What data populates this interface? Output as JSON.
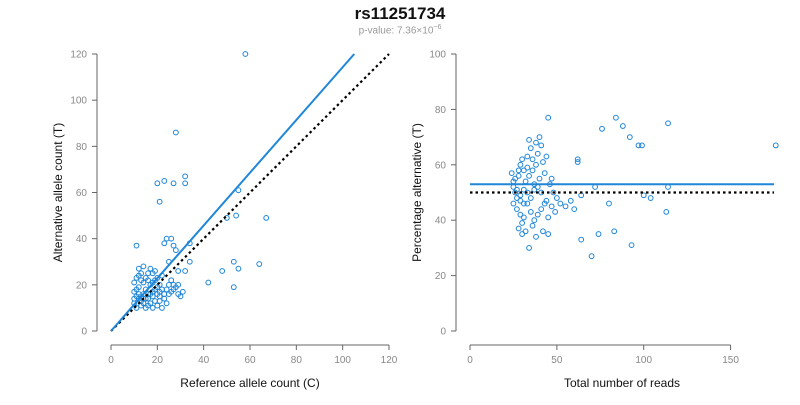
{
  "header": {
    "title": "rs11251734",
    "pvalue_prefix": "p-value: 7.36×10",
    "pvalue_exponent": "−6"
  },
  "colors": {
    "points": "#1f86d8",
    "fit_line": "#1f86d8",
    "reference_line": "#000000",
    "axis": "#666666",
    "tick_text": "#888888"
  },
  "chart_data": [
    {
      "type": "scatter",
      "xlabel": "Reference allele count (C)",
      "ylabel": "Alternative allele count (T)",
      "xlim": [
        0,
        120
      ],
      "ylim": [
        0,
        120
      ],
      "xticks": [
        0,
        20,
        40,
        60,
        80,
        100,
        120
      ],
      "yticks": [
        0,
        20,
        40,
        60,
        80,
        100,
        120
      ],
      "grid": false,
      "fit_line": {
        "style": "solid",
        "from": [
          0,
          0
        ],
        "to": [
          105,
          120
        ]
      },
      "reference_line": {
        "style": "dotted",
        "from": [
          0,
          0
        ],
        "to": [
          120,
          120
        ]
      },
      "points": [
        [
          58,
          120
        ],
        [
          28,
          86
        ],
        [
          32,
          67
        ],
        [
          20,
          64
        ],
        [
          23,
          65
        ],
        [
          27,
          64
        ],
        [
          32,
          64
        ],
        [
          21,
          56
        ],
        [
          55,
          61
        ],
        [
          54,
          50
        ],
        [
          67,
          49
        ],
        [
          50,
          49
        ],
        [
          26,
          40
        ],
        [
          23,
          38
        ],
        [
          24,
          40
        ],
        [
          34,
          38
        ],
        [
          28,
          35
        ],
        [
          27,
          37
        ],
        [
          11,
          37
        ],
        [
          25,
          30
        ],
        [
          29,
          26
        ],
        [
          32,
          26
        ],
        [
          48,
          26
        ],
        [
          55,
          27
        ],
        [
          34,
          30
        ],
        [
          53,
          30
        ],
        [
          64,
          29
        ],
        [
          42,
          21
        ],
        [
          53,
          19
        ],
        [
          27,
          20
        ],
        [
          29,
          16
        ],
        [
          31,
          17
        ],
        [
          10,
          17
        ],
        [
          11,
          18
        ],
        [
          12,
          19
        ],
        [
          13,
          15
        ],
        [
          14,
          16
        ],
        [
          15,
          18
        ],
        [
          16,
          14
        ],
        [
          17,
          20
        ],
        [
          18,
          17
        ],
        [
          19,
          22
        ],
        [
          21,
          13
        ],
        [
          22,
          18
        ],
        [
          10,
          12
        ],
        [
          11,
          10
        ],
        [
          12,
          14
        ],
        [
          13,
          11
        ],
        [
          14,
          12
        ],
        [
          15,
          10
        ],
        [
          16,
          11
        ],
        [
          17,
          12
        ],
        [
          18,
          10
        ],
        [
          19,
          13
        ],
        [
          20,
          11
        ],
        [
          21,
          15
        ],
        [
          22,
          10
        ],
        [
          24,
          12
        ],
        [
          12,
          24
        ],
        [
          13,
          22
        ],
        [
          14,
          28
        ],
        [
          15,
          23
        ],
        [
          16,
          25
        ],
        [
          17,
          27
        ],
        [
          18,
          21
        ],
        [
          19,
          26
        ],
        [
          20,
          23
        ],
        [
          21,
          20
        ],
        [
          10,
          21
        ],
        [
          11,
          23
        ],
        [
          12,
          27
        ],
        [
          13,
          25
        ],
        [
          14,
          21
        ],
        [
          16,
          22
        ],
        [
          18,
          25
        ],
        [
          20,
          19
        ],
        [
          22,
          24
        ],
        [
          23,
          16
        ],
        [
          24,
          18
        ],
        [
          25,
          20
        ],
        [
          26,
          17
        ],
        [
          28,
          19
        ],
        [
          30,
          15
        ],
        [
          14,
          14
        ],
        [
          16,
          16
        ],
        [
          18,
          15
        ],
        [
          20,
          16
        ],
        [
          11,
          15
        ],
        [
          13,
          13
        ],
        [
          15,
          14
        ],
        [
          17,
          16
        ],
        [
          19,
          18
        ],
        [
          21,
          17
        ],
        [
          23,
          14
        ],
        [
          25,
          16
        ],
        [
          10,
          14
        ],
        [
          12,
          16
        ],
        [
          26,
          22
        ],
        [
          27,
          18
        ],
        [
          29,
          20
        ]
      ]
    },
    {
      "type": "scatter",
      "xlabel": "Total number of reads",
      "ylabel": "Percentage alternative (T)",
      "xlim": [
        0,
        175
      ],
      "ylim": [
        0,
        100
      ],
      "xticks": [
        0,
        50,
        100,
        150
      ],
      "yticks": [
        0,
        20,
        40,
        60,
        80,
        100
      ],
      "grid": false,
      "fit_line": {
        "style": "solid",
        "from": [
          0,
          53
        ],
        "to": [
          175,
          53
        ]
      },
      "reference_line": {
        "style": "dotted",
        "from": [
          0,
          50
        ],
        "to": [
          175,
          50
        ]
      },
      "points": [
        [
          45,
          77
        ],
        [
          84,
          77
        ],
        [
          76,
          73
        ],
        [
          88,
          74
        ],
        [
          92,
          70
        ],
        [
          99,
          67
        ],
        [
          97,
          67
        ],
        [
          114,
          75
        ],
        [
          176,
          67
        ],
        [
          62,
          62
        ],
        [
          62,
          61
        ],
        [
          40,
          70
        ],
        [
          38,
          68
        ],
        [
          41,
          67
        ],
        [
          34,
          69
        ],
        [
          35,
          66
        ],
        [
          30,
          62
        ],
        [
          29,
          60
        ],
        [
          31,
          58
        ],
        [
          33,
          63
        ],
        [
          36,
          58
        ],
        [
          38,
          60
        ],
        [
          42,
          61
        ],
        [
          44,
          63
        ],
        [
          24,
          57
        ],
        [
          26,
          55
        ],
        [
          28,
          56
        ],
        [
          32,
          54
        ],
        [
          34,
          56
        ],
        [
          37,
          53
        ],
        [
          40,
          55
        ],
        [
          43,
          57
        ],
        [
          46,
          53
        ],
        [
          48,
          50
        ],
        [
          25,
          52
        ],
        [
          27,
          51
        ],
        [
          29,
          49
        ],
        [
          31,
          51
        ],
        [
          33,
          50
        ],
        [
          35,
          48
        ],
        [
          37,
          51
        ],
        [
          39,
          52
        ],
        [
          41,
          50
        ],
        [
          44,
          47
        ],
        [
          47,
          45
        ],
        [
          50,
          48
        ],
        [
          52,
          46
        ],
        [
          55,
          45
        ],
        [
          58,
          47
        ],
        [
          60,
          44
        ],
        [
          64,
          49
        ],
        [
          72,
          52
        ],
        [
          80,
          46
        ],
        [
          100,
          49
        ],
        [
          104,
          48
        ],
        [
          114,
          52
        ],
        [
          25,
          46
        ],
        [
          27,
          44
        ],
        [
          29,
          42
        ],
        [
          31,
          41
        ],
        [
          33,
          46
        ],
        [
          35,
          43
        ],
        [
          37,
          40
        ],
        [
          39,
          42
        ],
        [
          41,
          44
        ],
        [
          43,
          46
        ],
        [
          45,
          41
        ],
        [
          28,
          37
        ],
        [
          30,
          39
        ],
        [
          32,
          36
        ],
        [
          36,
          38
        ],
        [
          38,
          34
        ],
        [
          42,
          36
        ],
        [
          45,
          35
        ],
        [
          30,
          35
        ],
        [
          34,
          30
        ],
        [
          64,
          33
        ],
        [
          74,
          35
        ],
        [
          83,
          36
        ],
        [
          93,
          31
        ],
        [
          113,
          43
        ],
        [
          70,
          27
        ],
        [
          27,
          48
        ],
        [
          29,
          47
        ],
        [
          31,
          46
        ],
        [
          26,
          50
        ],
        [
          28,
          58
        ],
        [
          33,
          59
        ],
        [
          36,
          62
        ],
        [
          39,
          64
        ],
        [
          25,
          54
        ],
        [
          47,
          55
        ],
        [
          49,
          43
        ]
      ]
    }
  ]
}
